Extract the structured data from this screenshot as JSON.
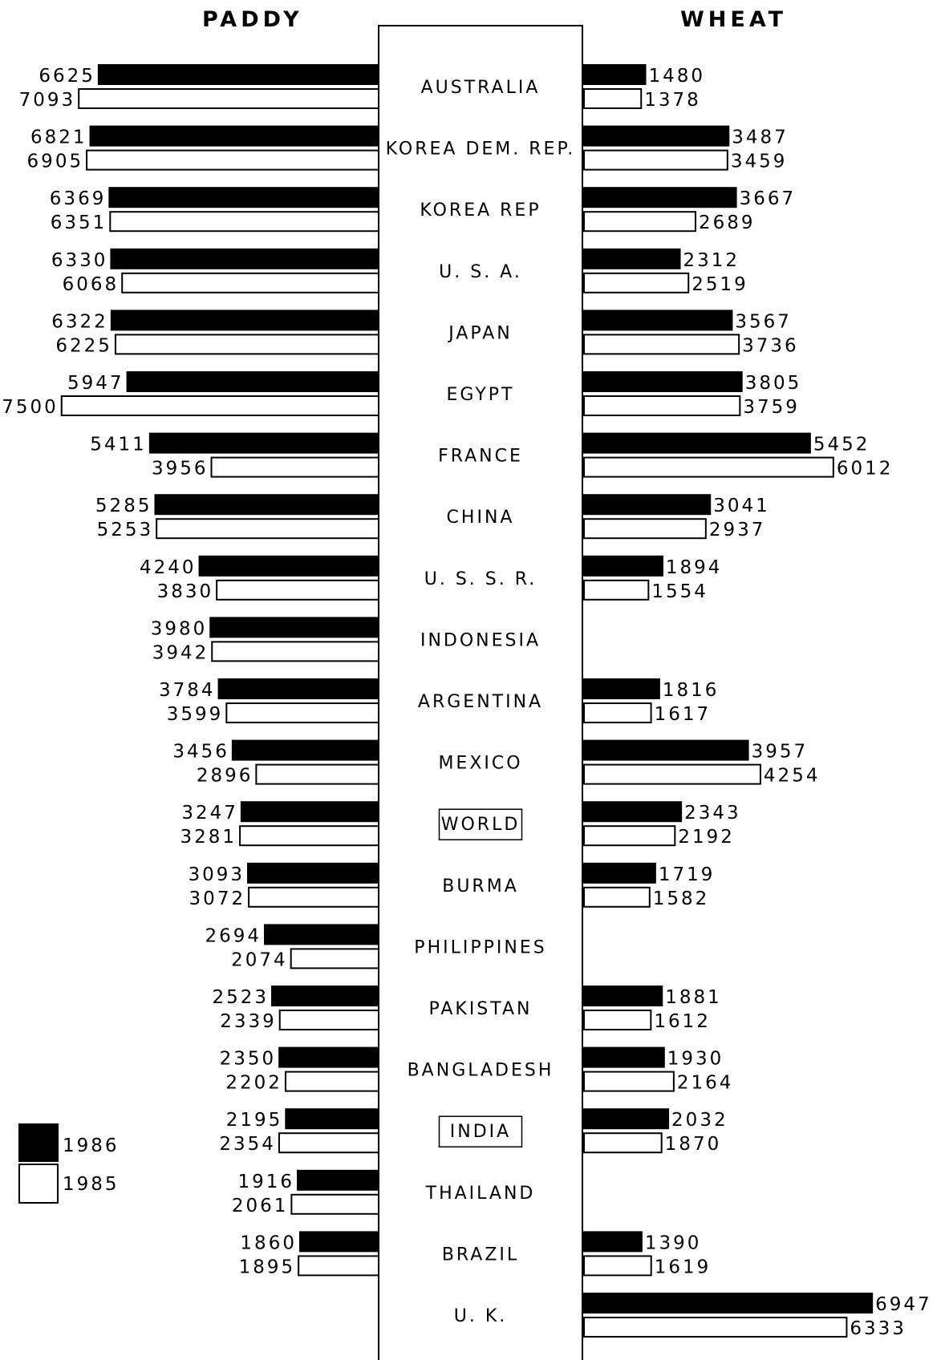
{
  "chart_data": [
    {
      "type": "bar",
      "title": "PADDY",
      "categories": [
        "AUSTRALIA",
        "KOREA DEM. REP.",
        "KOREA REP",
        "U. S. A.",
        "JAPAN",
        "EGYPT",
        "FRANCE",
        "CHINA",
        "U. S. S. R.",
        "INDONESIA",
        "ARGENTINA",
        "MEXICO",
        "WORLD",
        "BURMA",
        "PHILIPPINES",
        "PAKISTAN",
        "BANGLADESH",
        "INDIA",
        "THAILAND",
        "BRAZIL",
        "U. K."
      ],
      "series": [
        {
          "name": "1986",
          "values": [
            6625,
            6821,
            6369,
            6330,
            6322,
            5947,
            5411,
            5285,
            4240,
            3980,
            3784,
            3456,
            3247,
            3093,
            2694,
            2523,
            2350,
            2195,
            1916,
            1860,
            null
          ]
        },
        {
          "name": "1985",
          "values": [
            7093,
            6905,
            6351,
            6068,
            6225,
            7500,
            3956,
            5253,
            3830,
            3942,
            3599,
            2896,
            3281,
            3072,
            2074,
            2339,
            2202,
            2354,
            2061,
            1895,
            null
          ]
        }
      ],
      "orientation": "horizontal-leftward"
    },
    {
      "type": "bar",
      "title": "WHEAT",
      "categories": [
        "AUSTRALIA",
        "KOREA DEM. REP.",
        "KOREA REP",
        "U. S. A.",
        "JAPAN",
        "EGYPT",
        "FRANCE",
        "CHINA",
        "U. S. S. R.",
        "INDONESIA",
        "ARGENTINA",
        "MEXICO",
        "WORLD",
        "BURMA",
        "PHILIPPINES",
        "PAKISTAN",
        "BANGLADESH",
        "INDIA",
        "THAILAND",
        "BRAZIL",
        "U. K."
      ],
      "series": [
        {
          "name": "1986",
          "values": [
            1480,
            3487,
            3667,
            2312,
            3567,
            3805,
            5452,
            3041,
            1894,
            null,
            1816,
            3957,
            2343,
            1719,
            null,
            1881,
            1930,
            2032,
            null,
            1390,
            6947
          ]
        },
        {
          "name": "1985",
          "values": [
            1378,
            3459,
            2689,
            2519,
            3736,
            3759,
            6012,
            2937,
            1554,
            null,
            1617,
            4254,
            2192,
            1582,
            null,
            1612,
            2164,
            1870,
            null,
            1619,
            6333
          ]
        }
      ],
      "orientation": "horizontal-rightward"
    }
  ],
  "boxed_countries": [
    "WORLD",
    "INDIA"
  ],
  "legend": [
    {
      "label": "1986",
      "color": "#000000"
    },
    {
      "label": "1985",
      "color": "#ffffff"
    }
  ]
}
